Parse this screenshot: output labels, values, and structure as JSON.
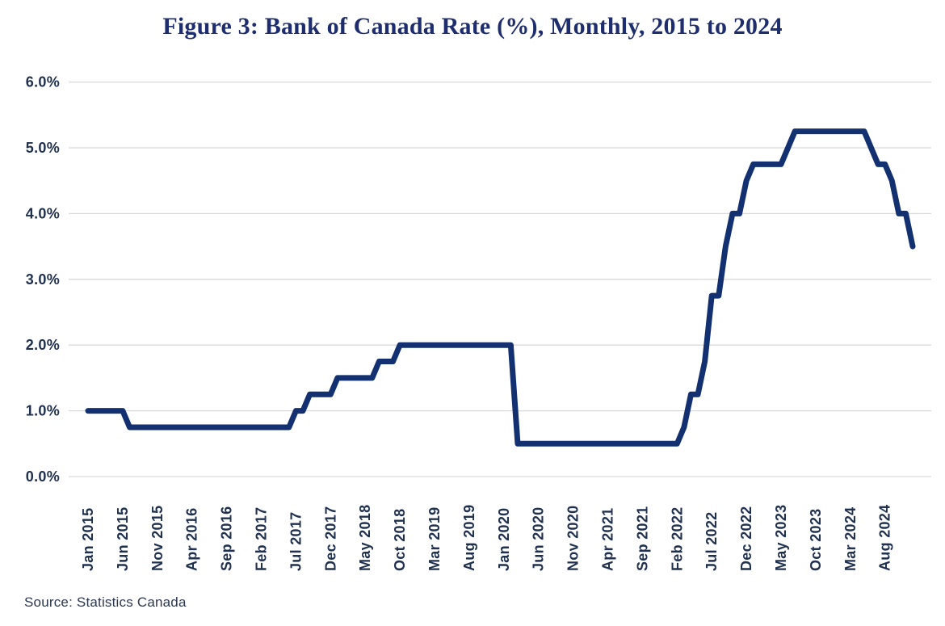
{
  "figure": {
    "title": "Figure 3: Bank of Canada Rate (%), Monthly, 2015 to 2024",
    "source_note": "Source: Statistics Canada"
  },
  "chart_data": {
    "type": "line",
    "title": "Figure 3: Bank of Canada Rate (%), Monthly, 2015 to 2024",
    "series_name": "Bank of Canada rate (%)",
    "frequency": "monthly",
    "x_start": "Jan 2015",
    "x_end": "Dec 2024",
    "x_tick_every_n_months": 5,
    "x_tick_labels": [
      "Jan 2015",
      "Jun 2015",
      "Nov 2015",
      "Apr 2016",
      "Sep 2016",
      "Feb 2017",
      "Jul 2017",
      "Dec 2017",
      "May 2018",
      "Oct 2018",
      "Mar 2019",
      "Aug 2019",
      "Jan 2020",
      "Jun 2020",
      "Nov 2020",
      "Apr 2021",
      "Sep 2021",
      "Feb 2022",
      "Jul 2022",
      "Dec 2022",
      "May 2023",
      "Oct 2023",
      "Mar 2024",
      "Aug 2024"
    ],
    "y_tick_labels": [
      "6.0%",
      "5.0%",
      "4.0%",
      "3.0%",
      "2.0%",
      "1.0%",
      "0.0%"
    ],
    "ylim": [
      0,
      6
    ],
    "grid": "horizontal-only",
    "legend": "none",
    "values": [
      1.0,
      1.0,
      1.0,
      1.0,
      1.0,
      1.0,
      0.75,
      0.75,
      0.75,
      0.75,
      0.75,
      0.75,
      0.75,
      0.75,
      0.75,
      0.75,
      0.75,
      0.75,
      0.75,
      0.75,
      0.75,
      0.75,
      0.75,
      0.75,
      0.75,
      0.75,
      0.75,
      0.75,
      0.75,
      0.75,
      1.0,
      1.0,
      1.25,
      1.25,
      1.25,
      1.25,
      1.5,
      1.5,
      1.5,
      1.5,
      1.5,
      1.5,
      1.75,
      1.75,
      1.75,
      2.0,
      2.0,
      2.0,
      2.0,
      2.0,
      2.0,
      2.0,
      2.0,
      2.0,
      2.0,
      2.0,
      2.0,
      2.0,
      2.0,
      2.0,
      2.0,
      2.0,
      0.5,
      0.5,
      0.5,
      0.5,
      0.5,
      0.5,
      0.5,
      0.5,
      0.5,
      0.5,
      0.5,
      0.5,
      0.5,
      0.5,
      0.5,
      0.5,
      0.5,
      0.5,
      0.5,
      0.5,
      0.5,
      0.5,
      0.5,
      0.5,
      0.75,
      1.25,
      1.25,
      1.75,
      2.75,
      2.75,
      3.5,
      4.0,
      4.0,
      4.5,
      4.75,
      4.75,
      4.75,
      4.75,
      4.75,
      5.0,
      5.25,
      5.25,
      5.25,
      5.25,
      5.25,
      5.25,
      5.25,
      5.25,
      5.25,
      5.25,
      5.25,
      5.0,
      4.75,
      4.75,
      4.5,
      4.0,
      4.0,
      3.5
    ],
    "colors": {
      "line": "#133170",
      "grid": "#d9d9d9",
      "title_text": "#1e2d6e",
      "tick_text": "#20304f",
      "source_text": "#2c3850"
    }
  }
}
